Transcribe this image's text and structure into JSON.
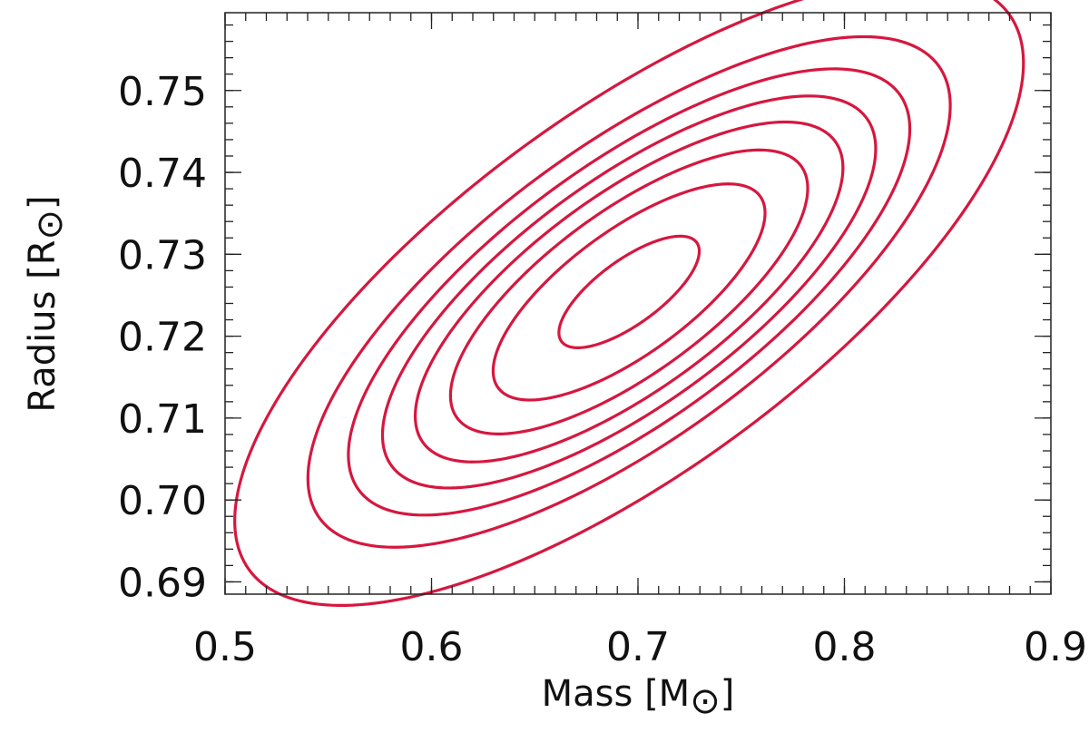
{
  "chart_data": {
    "type": "contour",
    "title": "",
    "xlabel": {
      "text": "Mass [M",
      "subscript_symbol": "⊙",
      "close": "]"
    },
    "ylabel": {
      "text": "Radius [R",
      "subscript_symbol": "⊙",
      "close": "]"
    },
    "xlim": [
      0.5,
      0.9
    ],
    "ylim": [
      0.6885,
      0.7595
    ],
    "x_ticks": [
      0.5,
      0.6,
      0.7,
      0.8,
      0.9
    ],
    "x_tick_labels": [
      "0.5",
      "0.6",
      "0.7",
      "0.8",
      "0.9"
    ],
    "x_minor_step": 0.01,
    "y_ticks": [
      0.69,
      0.7,
      0.71,
      0.72,
      0.73,
      0.74,
      0.75
    ],
    "y_tick_labels": [
      "0.69",
      "0.70",
      "0.71",
      "0.72",
      "0.73",
      "0.74",
      "0.75"
    ],
    "y_minor_step": 0.002,
    "grid": false,
    "contour_color": "#d6173f",
    "center": {
      "mass": 0.6957,
      "radius": 0.7254
    },
    "sigma": {
      "mass": 0.05425,
      "radius": 0.01087
    },
    "correlation": 0.73,
    "levels_sigma": [
      0.6266,
      1.2138,
      1.5947,
      1.9093,
      2.2018,
      2.5064,
      2.8675,
      3.5211
    ]
  }
}
